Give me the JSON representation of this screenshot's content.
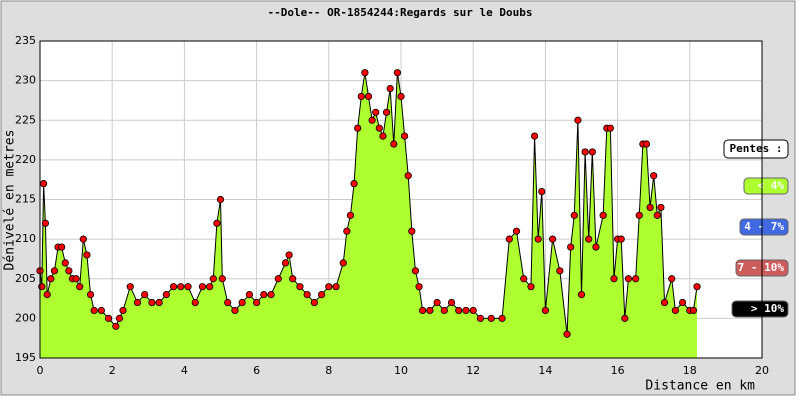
{
  "chart_data": {
    "type": "area",
    "title": "--Dole-- OR-1854244:Regards sur le Doubs",
    "x_label": "Distance en km",
    "y_label": "Dénivelé en metres",
    "xlim": [
      0,
      20
    ],
    "xticks": [
      0,
      2,
      4,
      6,
      8,
      10,
      12,
      14,
      16,
      18,
      20
    ],
    "ylim": [
      195,
      235
    ],
    "yticks": [
      195,
      200,
      205,
      210,
      215,
      220,
      225,
      230,
      235
    ],
    "grid": true,
    "fill_color": "#adff2f",
    "marker_color": "#ff0000",
    "x": [
      0,
      0.05,
      0.1,
      0.15,
      0.2,
      0.3,
      0.4,
      0.5,
      0.6,
      0.7,
      0.8,
      0.9,
      1.0,
      1.1,
      1.2,
      1.3,
      1.4,
      1.5,
      1.7,
      1.9,
      2.1,
      2.2,
      2.3,
      2.5,
      2.7,
      2.9,
      3.1,
      3.3,
      3.5,
      3.7,
      3.9,
      4.1,
      4.3,
      4.5,
      4.7,
      4.8,
      4.9,
      5.0,
      5.05,
      5.2,
      5.4,
      5.6,
      5.8,
      6.0,
      6.2,
      6.4,
      6.6,
      6.8,
      6.9,
      7.0,
      7.2,
      7.4,
      7.6,
      7.8,
      8.0,
      8.2,
      8.4,
      8.5,
      8.6,
      8.7,
      8.8,
      8.9,
      9.0,
      9.1,
      9.2,
      9.3,
      9.4,
      9.5,
      9.6,
      9.7,
      9.8,
      9.9,
      10.0,
      10.1,
      10.2,
      10.3,
      10.4,
      10.5,
      10.6,
      10.8,
      11.0,
      11.2,
      11.4,
      11.6,
      11.8,
      12.0,
      12.2,
      12.5,
      12.8,
      13.0,
      13.2,
      13.4,
      13.6,
      13.7,
      13.8,
      13.9,
      14.0,
      14.2,
      14.4,
      14.6,
      14.7,
      14.8,
      14.9,
      15.0,
      15.1,
      15.2,
      15.3,
      15.4,
      15.6,
      15.7,
      15.8,
      15.9,
      16.0,
      16.1,
      16.2,
      16.3,
      16.5,
      16.6,
      16.7,
      16.8,
      16.9,
      17.0,
      17.1,
      17.2,
      17.3,
      17.5,
      17.6,
      17.8,
      18.0,
      18.1,
      18.2
    ],
    "series": [
      {
        "color": "#000000",
        "values": [
          206,
          204,
          217,
          212,
          203,
          205,
          206,
          209,
          209,
          207,
          206,
          205,
          205,
          204,
          210,
          208,
          203,
          201,
          201,
          200,
          199,
          200,
          201,
          204,
          202,
          203,
          202,
          202,
          203,
          204,
          204,
          204,
          202,
          204,
          204,
          205,
          212,
          215,
          205,
          202,
          201,
          202,
          203,
          202,
          203,
          203,
          205,
          207,
          208,
          205,
          204,
          203,
          202,
          203,
          204,
          204,
          207,
          211,
          213,
          217,
          224,
          228,
          231,
          228,
          225,
          226,
          224,
          223,
          226,
          229,
          222,
          231,
          228,
          223,
          218,
          211,
          206,
          204,
          201,
          201,
          202,
          201,
          202,
          201,
          201,
          201,
          200,
          200,
          200,
          210,
          211,
          205,
          204,
          223,
          210,
          216,
          201,
          210,
          206,
          198,
          209,
          213,
          225,
          203,
          221,
          210,
          221,
          209,
          213,
          224,
          224,
          205,
          210,
          210,
          200,
          205,
          205,
          213,
          222,
          222,
          214,
          218,
          213,
          214,
          202,
          205,
          201,
          202,
          201,
          201,
          204
        ]
      }
    ],
    "legend": {
      "title": "Pentes :",
      "items": [
        {
          "label": "< 4%",
          "color": "#adff2f"
        },
        {
          "label": "4 - 7%",
          "color": "#4169e1"
        },
        {
          "label": "7 - 10%",
          "color": "#cd5c5c"
        },
        {
          "label": "> 10%",
          "color": "#000000"
        }
      ]
    }
  }
}
